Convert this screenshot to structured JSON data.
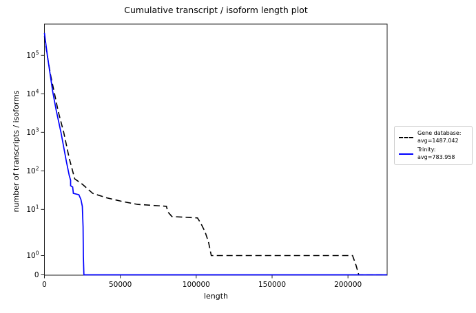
{
  "chart_data": {
    "type": "line",
    "title": "Cumulative transcript / isoform length plot",
    "xlabel": "length",
    "ylabel": "number of transcripts / isoforms",
    "yscale": "symlog",
    "grid": false,
    "xlim": [
      0,
      225800
    ],
    "ylim": [
      0,
      400000
    ],
    "x_ticks": [
      {
        "value": 0,
        "label": "0"
      },
      {
        "value": 50000,
        "label": "50000"
      },
      {
        "value": 100000,
        "label": "100000"
      },
      {
        "value": 150000,
        "label": "150000"
      },
      {
        "value": 200000,
        "label": "200000"
      }
    ],
    "y_ticks": [
      {
        "value": 0,
        "label": "0",
        "exp": ""
      },
      {
        "value": 1,
        "label": "10",
        "exp": "0"
      },
      {
        "value": 10,
        "label": "10",
        "exp": "1"
      },
      {
        "value": 100,
        "label": "10",
        "exp": "2"
      },
      {
        "value": 1000,
        "label": "10",
        "exp": "3"
      },
      {
        "value": 10000,
        "label": "10",
        "exp": "4"
      },
      {
        "value": 100000,
        "label": "10",
        "exp": "5"
      }
    ],
    "legend": {
      "position": "outside-right",
      "entries": [
        {
          "label": "Gene database:",
          "sublabel": "avg=1487.042",
          "color": "#000000",
          "style": "dashed"
        },
        {
          "label": "Trinity:",
          "sublabel": "avg=783.958",
          "color": "#0000ff",
          "style": "solid"
        }
      ]
    },
    "series": [
      {
        "name": "Gene database",
        "color": "#000000",
        "style": "dashed",
        "points": [
          [
            0,
            310000
          ],
          [
            1800,
            101000
          ],
          [
            4100,
            30000
          ],
          [
            6360,
            11500
          ],
          [
            9100,
            3500
          ],
          [
            12700,
            1000
          ],
          [
            16350,
            212
          ],
          [
            19990,
            62
          ],
          [
            24980,
            45
          ],
          [
            31800,
            26
          ],
          [
            40880,
            20
          ],
          [
            51330,
            16
          ],
          [
            61320,
            13.5
          ],
          [
            80400,
            12
          ],
          [
            81300,
            8.6
          ],
          [
            84030,
            6.5
          ],
          [
            100840,
            6
          ],
          [
            103110,
            4.3
          ],
          [
            105830,
            2.6
          ],
          [
            108100,
            1.7
          ],
          [
            109920,
            1
          ],
          [
            203030,
            1
          ],
          [
            205300,
            0.5
          ],
          [
            207120,
            0
          ],
          [
            225740,
            0
          ]
        ]
      },
      {
        "name": "Trinity",
        "color": "#0000ff",
        "style": "solid",
        "points": [
          [
            0,
            380000
          ],
          [
            1800,
            106000
          ],
          [
            3600,
            36000
          ],
          [
            5450,
            11500
          ],
          [
            7700,
            3800
          ],
          [
            10900,
            1000
          ],
          [
            14500,
            173
          ],
          [
            16350,
            76
          ],
          [
            17260,
            57
          ],
          [
            17260,
            41
          ],
          [
            18620,
            38
          ],
          [
            19080,
            26
          ],
          [
            22710,
            24
          ],
          [
            24070,
            18
          ],
          [
            24980,
            12
          ],
          [
            25440,
            3.5
          ],
          [
            25660,
            1
          ],
          [
            26000,
            0
          ],
          [
            225800,
            0
          ]
        ]
      }
    ],
    "colors": {
      "frame": "#222222",
      "background": "#ffffff",
      "legend_border": "#cccccc"
    }
  }
}
